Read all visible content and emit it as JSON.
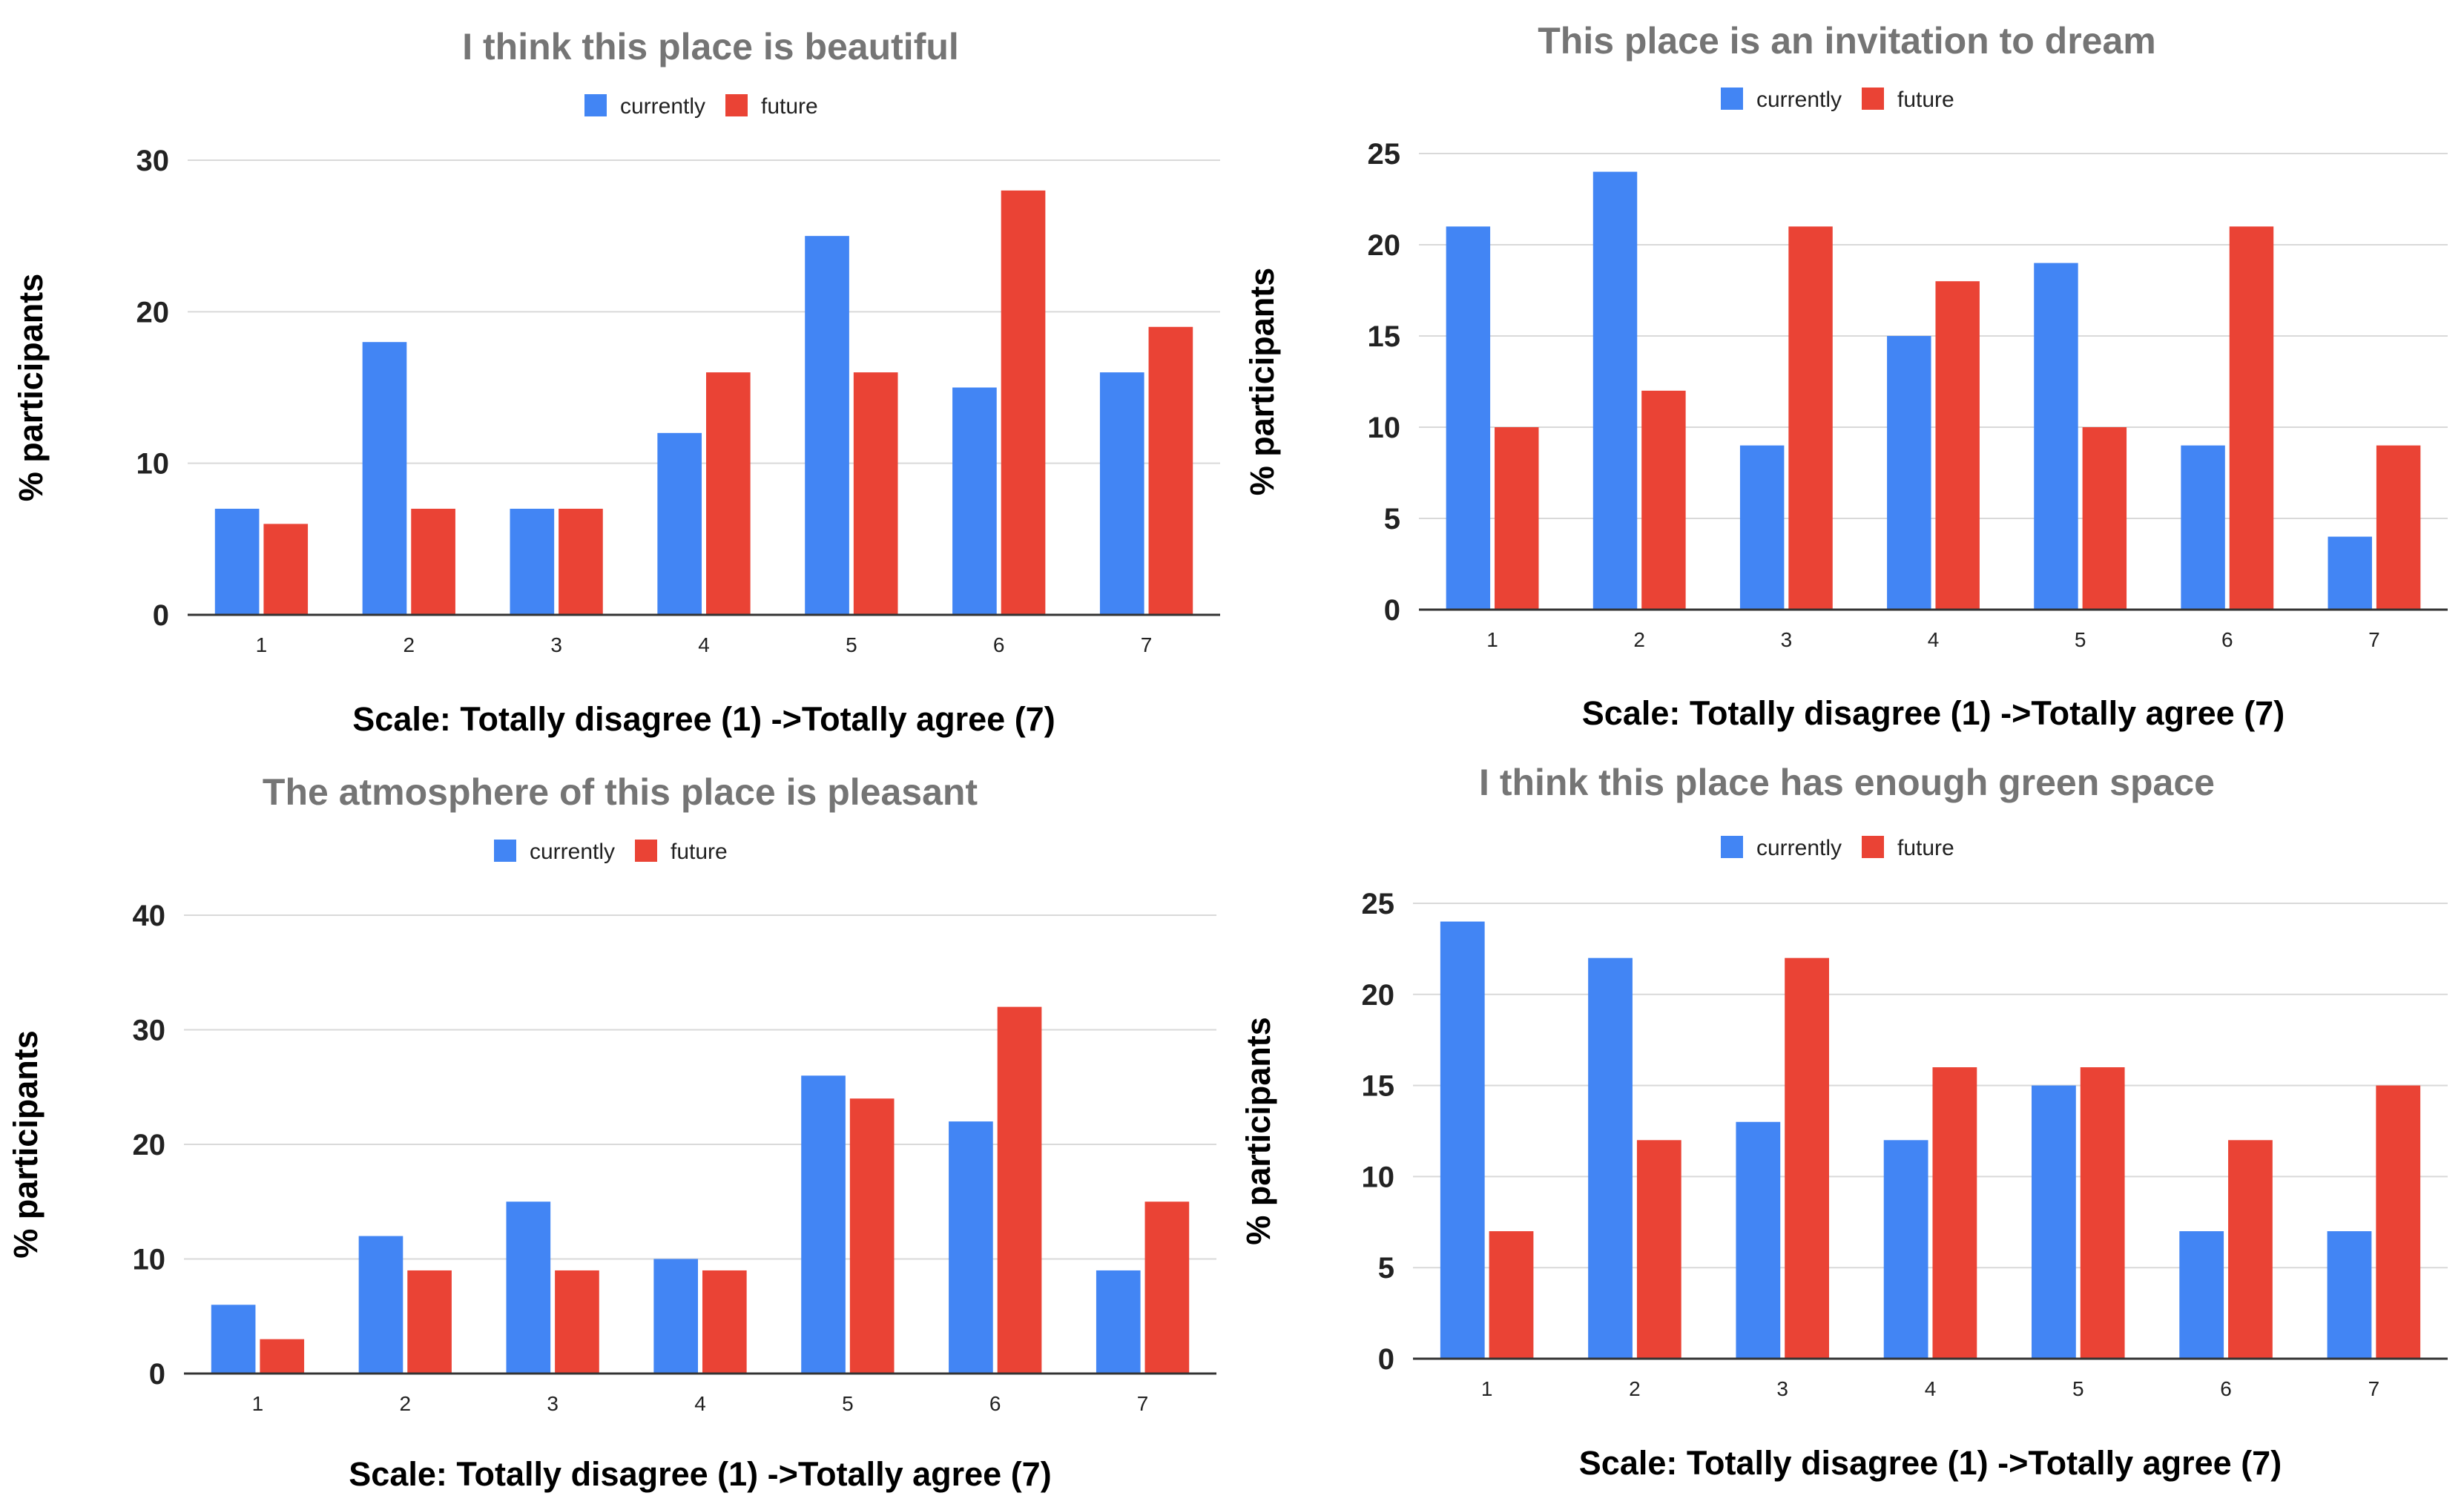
{
  "colors": {
    "currently": "#4285f4",
    "future": "#ea4335"
  },
  "chart_data": [
    {
      "type": "bar",
      "title": "I think this place is beautiful",
      "categories": [
        "1",
        "2",
        "3",
        "4",
        "5",
        "6",
        "7"
      ],
      "series": [
        {
          "name": "currently",
          "values": [
            7,
            18,
            7,
            12,
            25,
            15,
            16
          ]
        },
        {
          "name": "future",
          "values": [
            6,
            7,
            7,
            16,
            16,
            28,
            19
          ]
        }
      ],
      "yticks": [
        0,
        10,
        20,
        30
      ],
      "ylim": [
        0,
        30
      ],
      "xlabel": "Scale: Totally disagree (1) ->Totally agree (7)",
      "ylabel": "% participants",
      "legend": "top-center"
    },
    {
      "type": "bar",
      "title": "This place is an invitation to dream",
      "categories": [
        "1",
        "2",
        "3",
        "4",
        "5",
        "6",
        "7"
      ],
      "series": [
        {
          "name": "currently",
          "values": [
            21,
            24,
            9,
            15,
            19,
            9,
            4
          ]
        },
        {
          "name": "future",
          "values": [
            10,
            12,
            21,
            18,
            10,
            21,
            9
          ]
        }
      ],
      "yticks": [
        0,
        5,
        10,
        15,
        20,
        25
      ],
      "ylim": [
        0,
        25
      ],
      "xlabel": "Scale: Totally disagree (1) ->Totally agree (7)",
      "ylabel": "% participants",
      "legend": "top-center"
    },
    {
      "type": "bar",
      "title": "The atmosphere of this place is pleasant",
      "categories": [
        "1",
        "2",
        "3",
        "4",
        "5",
        "6",
        "7"
      ],
      "series": [
        {
          "name": "currently",
          "values": [
            6,
            12,
            15,
            10,
            26,
            22,
            9
          ]
        },
        {
          "name": "future",
          "values": [
            3,
            9,
            9,
            9,
            24,
            32,
            15
          ]
        }
      ],
      "yticks": [
        0,
        10,
        20,
        30,
        40
      ],
      "ylim": [
        0,
        40
      ],
      "xlabel": "Scale: Totally disagree (1) ->Totally agree (7)",
      "ylabel": "% participants",
      "legend": "top-center"
    },
    {
      "type": "bar",
      "title": "I think this place has enough green space",
      "categories": [
        "1",
        "2",
        "3",
        "4",
        "5",
        "6",
        "7"
      ],
      "series": [
        {
          "name": "currently",
          "values": [
            24,
            22,
            13,
            12,
            15,
            7,
            7
          ]
        },
        {
          "name": "future",
          "values": [
            7,
            12,
            22,
            16,
            16,
            12,
            15
          ]
        }
      ],
      "yticks": [
        0,
        5,
        10,
        15,
        20,
        25
      ],
      "ylim": [
        0,
        25
      ],
      "xlabel": "Scale: Totally disagree (1) ->Totally agree (7)",
      "ylabel": "% participants",
      "legend": "top-center"
    }
  ]
}
